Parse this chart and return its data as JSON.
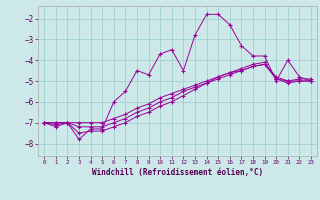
{
  "xlabel": "Windchill (Refroidissement éolien,°C)",
  "bg_color": "#cce8e8",
  "grid_color": "#99cccc",
  "line_color": "#990099",
  "xlim": [
    -0.5,
    23.5
  ],
  "ylim": [
    -8.6,
    -1.4
  ],
  "yticks": [
    -8,
    -7,
    -6,
    -5,
    -4,
    -3,
    -2
  ],
  "xticks": [
    0,
    1,
    2,
    3,
    4,
    5,
    6,
    7,
    8,
    9,
    10,
    11,
    12,
    13,
    14,
    15,
    16,
    17,
    18,
    19,
    20,
    21,
    22,
    23
  ],
  "series": [
    {
      "x": [
        0,
        1,
        2,
        3,
        4,
        5,
        6,
        7,
        8,
        9,
        10,
        11,
        12,
        13,
        14,
        15,
        16,
        17,
        18,
        19,
        20,
        21,
        22,
        23
      ],
      "y": [
        -7.0,
        -7.2,
        -7.0,
        -7.8,
        -7.3,
        -7.3,
        -6.0,
        -5.5,
        -4.5,
        -4.7,
        -3.7,
        -3.5,
        -4.5,
        -2.8,
        -1.8,
        -1.8,
        -2.3,
        -3.3,
        -3.8,
        -3.8,
        -5.0,
        -4.0,
        -4.8,
        -5.0
      ]
    },
    {
      "x": [
        0,
        1,
        2,
        3,
        4,
        5,
        6,
        7,
        8,
        9,
        10,
        11,
        12,
        13,
        14,
        15,
        16,
        17,
        18,
        19,
        20,
        21,
        22,
        23
      ],
      "y": [
        -7.0,
        -7.1,
        -7.0,
        -7.5,
        -7.4,
        -7.4,
        -7.2,
        -7.0,
        -6.7,
        -6.5,
        -6.2,
        -6.0,
        -5.7,
        -5.4,
        -5.1,
        -4.8,
        -4.6,
        -4.4,
        -4.2,
        -4.1,
        -4.9,
        -5.1,
        -5.0,
        -5.0
      ]
    },
    {
      "x": [
        0,
        1,
        2,
        3,
        4,
        5,
        6,
        7,
        8,
        9,
        10,
        11,
        12,
        13,
        14,
        15,
        16,
        17,
        18,
        19,
        20,
        21,
        22,
        23
      ],
      "y": [
        -7.0,
        -7.0,
        -7.0,
        -7.2,
        -7.2,
        -7.2,
        -7.0,
        -6.8,
        -6.5,
        -6.3,
        -6.0,
        -5.8,
        -5.5,
        -5.3,
        -5.1,
        -4.9,
        -4.7,
        -4.5,
        -4.3,
        -4.2,
        -4.9,
        -5.0,
        -5.0,
        -5.0
      ]
    },
    {
      "x": [
        0,
        1,
        2,
        3,
        4,
        5,
        6,
        7,
        8,
        9,
        10,
        11,
        12,
        13,
        14,
        15,
        16,
        17,
        18,
        19,
        20,
        21,
        22,
        23
      ],
      "y": [
        -7.0,
        -7.0,
        -7.0,
        -7.0,
        -7.0,
        -7.0,
        -6.8,
        -6.6,
        -6.3,
        -6.1,
        -5.8,
        -5.6,
        -5.4,
        -5.2,
        -5.0,
        -4.8,
        -4.6,
        -4.5,
        -4.3,
        -4.2,
        -4.8,
        -5.0,
        -4.9,
        -4.9
      ]
    }
  ]
}
